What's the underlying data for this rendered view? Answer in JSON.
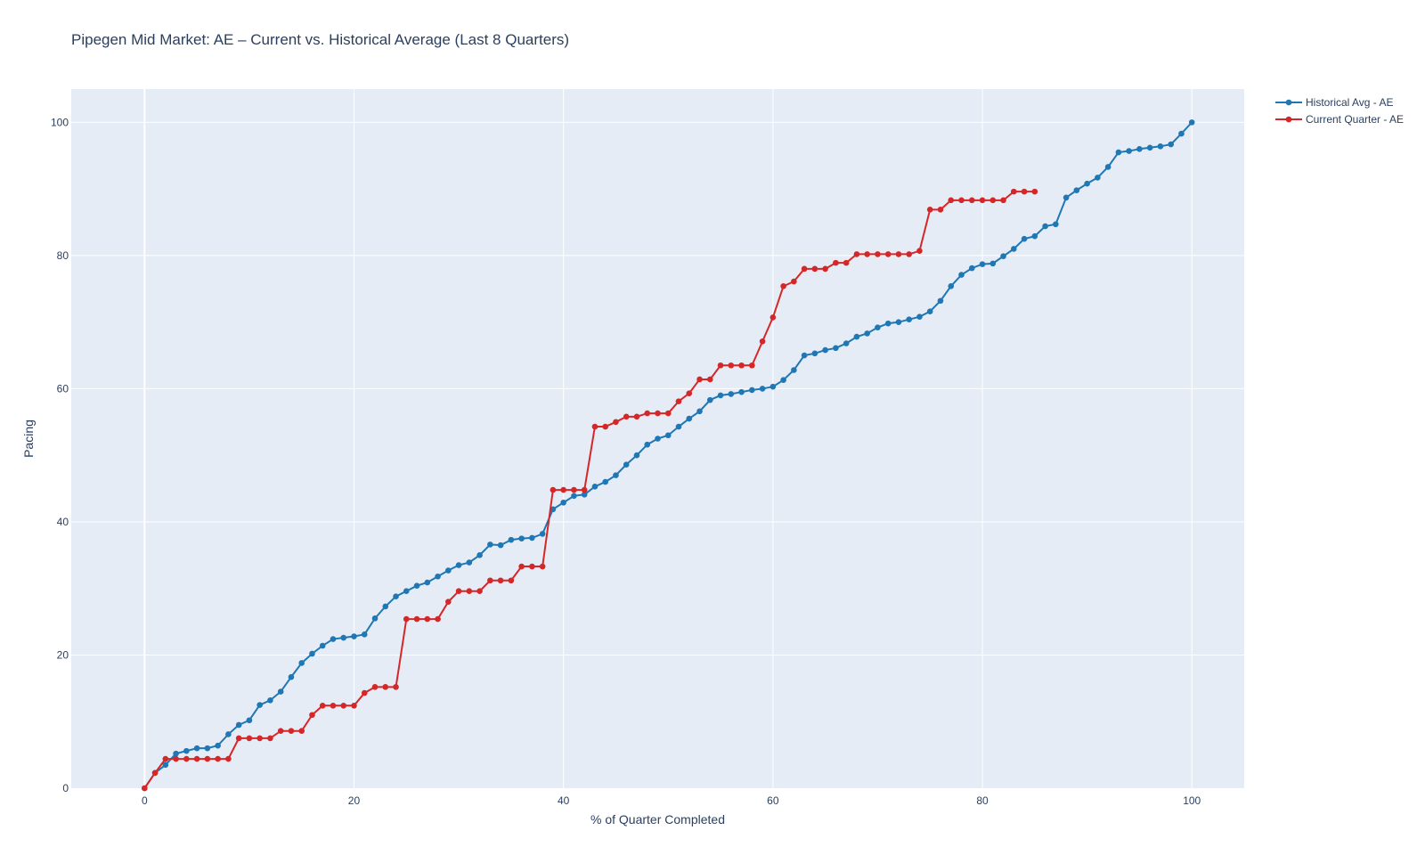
{
  "chart_data": {
    "type": "line",
    "title": "Pipegen Mid Market: AE – Current vs. Historical Average (Last 8 Quarters)",
    "xlabel": "% of Quarter Completed",
    "ylabel": "Pacing",
    "xlim": [
      -7,
      105
    ],
    "ylim": [
      0,
      105
    ],
    "x_ticks": [
      0,
      20,
      40,
      60,
      80,
      100
    ],
    "y_ticks": [
      0,
      20,
      40,
      60,
      80,
      100
    ],
    "grid": true,
    "legend_position": "top-right",
    "colors": {
      "plot_bg": "#e5ecf6",
      "grid": "#ffffff"
    },
    "series": [
      {
        "name": "Historical Avg - AE",
        "color": "#1f77b4",
        "x": [
          0,
          1,
          2,
          3,
          4,
          5,
          6,
          7,
          8,
          9,
          10,
          11,
          12,
          13,
          14,
          15,
          16,
          17,
          18,
          19,
          20,
          21,
          22,
          23,
          24,
          25,
          26,
          27,
          28,
          29,
          30,
          31,
          32,
          33,
          34,
          35,
          36,
          37,
          38,
          39,
          40,
          41,
          42,
          43,
          44,
          45,
          46,
          47,
          48,
          49,
          50,
          51,
          52,
          53,
          54,
          55,
          56,
          57,
          58,
          59,
          60,
          61,
          62,
          63,
          64,
          65,
          66,
          67,
          68,
          69,
          70,
          71,
          72,
          73,
          74,
          75,
          76,
          77,
          78,
          79,
          80,
          81,
          82,
          83,
          84,
          85,
          86,
          87,
          88,
          89,
          90,
          91,
          92,
          93,
          94,
          95,
          96,
          97,
          98,
          99,
          100
        ],
        "values": [
          0,
          2.3,
          3.5,
          5.2,
          5.6,
          6.0,
          6.0,
          6.4,
          8.1,
          9.5,
          10.2,
          12.5,
          13.2,
          14.5,
          16.7,
          18.8,
          20.2,
          21.4,
          22.4,
          22.6,
          22.8,
          23.1,
          25.5,
          27.3,
          28.8,
          29.6,
          30.4,
          30.9,
          31.8,
          32.7,
          33.5,
          33.9,
          35.0,
          36.6,
          36.5,
          37.3,
          37.5,
          37.6,
          38.2,
          41.9,
          42.9,
          43.9,
          44.1,
          45.3,
          46.0,
          47.0,
          48.6,
          50.0,
          51.6,
          52.5,
          53.0,
          54.3,
          55.5,
          56.6,
          58.3,
          59.0,
          59.2,
          59.5,
          59.8,
          60.0,
          60.3,
          61.3,
          62.8,
          65.0,
          65.3,
          65.8,
          66.1,
          66.8,
          67.8,
          68.3,
          69.2,
          69.8,
          70.0,
          70.4,
          70.8,
          71.6,
          73.2,
          75.4,
          77.1,
          78.1,
          78.7,
          78.8,
          79.9,
          81.0,
          82.5,
          82.9,
          84.4,
          84.7,
          88.7,
          89.8,
          90.8,
          91.7,
          93.3,
          95.5,
          95.7,
          96.0,
          96.2,
          96.4,
          96.7,
          98.3,
          100
        ]
      },
      {
        "name": "Current Quarter - AE",
        "color": "#d62728",
        "x": [
          0,
          1,
          2,
          3,
          4,
          5,
          6,
          7,
          8,
          9,
          10,
          11,
          12,
          13,
          14,
          15,
          16,
          17,
          18,
          19,
          20,
          21,
          22,
          23,
          24,
          25,
          26,
          27,
          28,
          29,
          30,
          31,
          32,
          33,
          34,
          35,
          36,
          37,
          38,
          39,
          40,
          41,
          42,
          43,
          44,
          45,
          46,
          47,
          48,
          49,
          50,
          51,
          52,
          53,
          54,
          55,
          56,
          57,
          58,
          59,
          60,
          61,
          62,
          63,
          64,
          65,
          66,
          67,
          68,
          69,
          70,
          71,
          72,
          73,
          74,
          75,
          76,
          77,
          78,
          79,
          80,
          81,
          82,
          83,
          84,
          85
        ],
        "values": [
          0,
          2.3,
          4.4,
          4.4,
          4.4,
          4.4,
          4.4,
          4.4,
          4.4,
          7.5,
          7.5,
          7.5,
          7.5,
          8.6,
          8.6,
          8.6,
          11.0,
          12.4,
          12.4,
          12.4,
          12.4,
          14.3,
          15.2,
          15.2,
          15.2,
          25.4,
          25.4,
          25.4,
          25.4,
          28.0,
          29.6,
          29.6,
          29.6,
          31.2,
          31.2,
          31.2,
          33.3,
          33.3,
          33.3,
          44.8,
          44.8,
          44.8,
          44.8,
          54.3,
          54.3,
          55.0,
          55.8,
          55.8,
          56.3,
          56.3,
          56.3,
          58.1,
          59.3,
          61.4,
          61.4,
          63.5,
          63.5,
          63.5,
          63.5,
          67.1,
          70.7,
          75.4,
          76.1,
          78.0,
          78.0,
          78.0,
          78.9,
          78.9,
          80.2,
          80.2,
          80.2,
          80.2,
          80.2,
          80.2,
          80.7,
          86.9,
          86.9,
          88.3,
          88.3,
          88.3,
          88.3,
          88.3,
          88.3,
          89.6,
          89.6,
          89.6
        ]
      }
    ]
  }
}
